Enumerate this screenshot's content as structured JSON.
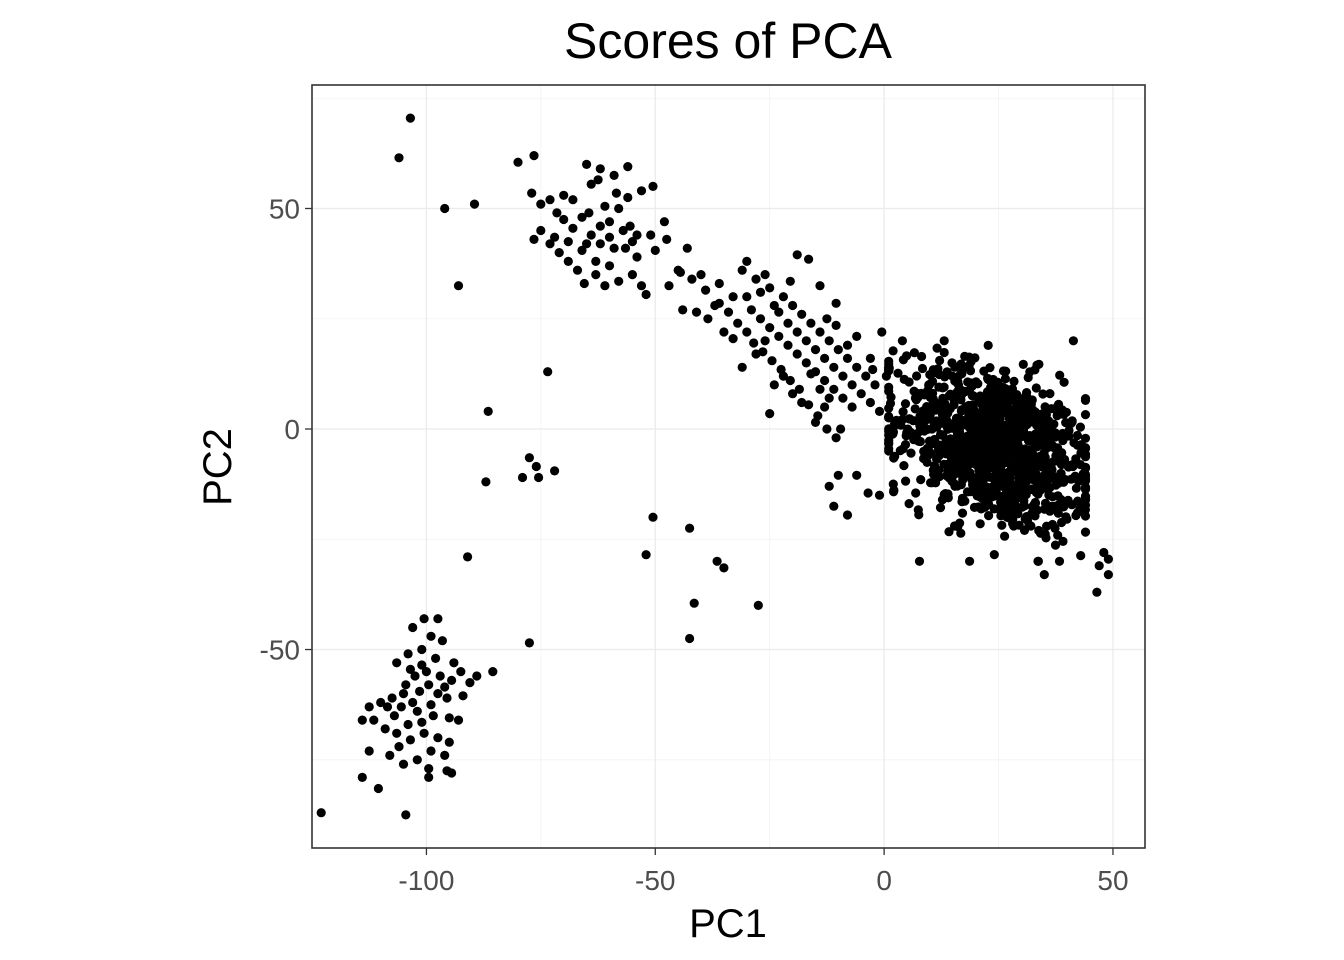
{
  "chart_data": {
    "type": "scatter",
    "title": "Scores of PCA",
    "xlabel": "PC1",
    "ylabel": "PC2",
    "xlim": [
      -125,
      57
    ],
    "ylim": [
      -95,
      78
    ],
    "x_ticks": [
      -100,
      -50,
      0,
      50
    ],
    "y_ticks": [
      -50,
      0,
      50
    ],
    "x_tick_labels": [
      "-100",
      "-50",
      "0",
      "50"
    ],
    "y_tick_labels": [
      "-50",
      "0",
      "50"
    ],
    "grid": true,
    "theme": "bw",
    "point_color": "#000000",
    "points": [
      [
        -103.5,
        70.5
      ],
      [
        -106,
        61.5
      ],
      [
        -96,
        50
      ],
      [
        -89.5,
        51
      ],
      [
        -93,
        32.5
      ],
      [
        -73.5,
        13
      ],
      [
        -86.5,
        4
      ],
      [
        -87,
        -12
      ],
      [
        -77.5,
        -6.5
      ],
      [
        -79,
        -11
      ],
      [
        -76,
        -8.5
      ],
      [
        -72,
        -9.5
      ],
      [
        -75.5,
        -11
      ],
      [
        -91,
        -29
      ],
      [
        -77.5,
        -48.5
      ],
      [
        -50.5,
        -20
      ],
      [
        -52,
        -28.5
      ],
      [
        -42.5,
        -22.5
      ],
      [
        -41.5,
        -39.5
      ],
      [
        -42.5,
        -47.5
      ],
      [
        -36.5,
        -30
      ],
      [
        -35,
        -31.5
      ],
      [
        -27.5,
        -40
      ],
      [
        -123,
        -87
      ],
      [
        -110.5,
        -81.5
      ],
      [
        -114,
        -79
      ],
      [
        -104.5,
        -87.5
      ],
      [
        -85.5,
        -55
      ],
      [
        -12,
        -13
      ],
      [
        -10,
        -10.5
      ],
      [
        -11,
        -17.5
      ],
      [
        -8,
        -19.5
      ],
      [
        -6,
        -10.5
      ],
      [
        -3.5,
        -14.5
      ],
      [
        -1,
        -15
      ],
      [
        2,
        -12.5
      ],
      [
        48,
        -28
      ],
      [
        49,
        -29.5
      ],
      [
        47,
        -31
      ],
      [
        49,
        -33
      ],
      [
        46.5,
        -37
      ],
      [
        35,
        -33
      ],
      [
        21,
        -21.5
      ],
      [
        -9.5,
        0
      ],
      [
        -15,
        1.5
      ],
      [
        -13,
        5
      ],
      [
        -25,
        3.5
      ],
      [
        -76.5,
        62
      ],
      [
        -80,
        60.5
      ],
      [
        -65,
        60
      ],
      [
        -62,
        59
      ],
      [
        -56,
        59.5
      ],
      [
        -59,
        57.5
      ],
      [
        -64,
        55.5
      ],
      [
        -62.5,
        56.5
      ],
      [
        -68,
        52
      ],
      [
        -70,
        53
      ],
      [
        -73,
        52
      ],
      [
        -75,
        51
      ],
      [
        -77,
        53.5
      ],
      [
        -58,
        50
      ],
      [
        -56,
        52.5
      ],
      [
        -53,
        54
      ],
      [
        -50.5,
        55
      ],
      [
        -55.5,
        46
      ],
      [
        -51,
        44
      ],
      [
        -48,
        47
      ],
      [
        -47.5,
        43
      ],
      [
        -50,
        40.5
      ],
      [
        -54,
        39
      ],
      [
        -60,
        37
      ],
      [
        -63,
        35
      ],
      [
        -65.5,
        33
      ],
      [
        -61,
        32.5
      ],
      [
        -58,
        33.5
      ],
      [
        -55,
        35
      ],
      [
        -53,
        32.5
      ],
      [
        -52,
        30.5
      ],
      [
        -47,
        32.5
      ],
      [
        -44,
        27
      ],
      [
        -69,
        38
      ],
      [
        -71,
        40
      ],
      [
        -73,
        42
      ],
      [
        -75,
        45
      ],
      [
        -76.5,
        43
      ],
      [
        -66,
        40.5
      ],
      [
        -64,
        44
      ],
      [
        -62,
        42
      ],
      [
        -60,
        47
      ],
      [
        -61,
        50.5
      ],
      [
        -57,
        45
      ],
      [
        -66,
        48
      ],
      [
        -68,
        45.5
      ],
      [
        -70,
        47.5
      ],
      [
        -72,
        43.5
      ],
      [
        -59,
        41
      ],
      [
        -56.5,
        41
      ],
      [
        -54,
        44
      ],
      [
        -63,
        38
      ],
      [
        -67,
        36
      ],
      [
        -64.5,
        49
      ],
      [
        -58.5,
        53.5
      ],
      [
        -71.5,
        49
      ],
      [
        -69,
        42.5
      ],
      [
        -62,
        46
      ],
      [
        -60,
        43.5
      ],
      [
        -65,
        42
      ],
      [
        -55,
        42.5
      ],
      [
        -45,
        36
      ],
      [
        -40,
        35
      ],
      [
        -36,
        33
      ],
      [
        -31,
        36
      ],
      [
        -28,
        34
      ],
      [
        -25,
        32
      ],
      [
        -22,
        30
      ],
      [
        -20,
        28
      ],
      [
        -18,
        26
      ],
      [
        -16,
        24
      ],
      [
        -14,
        22
      ],
      [
        -12,
        20
      ],
      [
        -10,
        18
      ],
      [
        -8,
        16
      ],
      [
        -6,
        14
      ],
      [
        -4,
        12
      ],
      [
        -2,
        10
      ],
      [
        -30,
        38
      ],
      [
        -26,
        35
      ],
      [
        -24,
        28
      ],
      [
        -21,
        24
      ],
      [
        -19,
        22
      ],
      [
        -17,
        20
      ],
      [
        -15,
        18
      ],
      [
        -13,
        16
      ],
      [
        -11,
        14
      ],
      [
        -9,
        12
      ],
      [
        -7,
        10
      ],
      [
        -5,
        8
      ],
      [
        -3,
        6
      ],
      [
        -1,
        4
      ],
      [
        -33,
        30
      ],
      [
        -29,
        27
      ],
      [
        -27,
        25
      ],
      [
        -25,
        23
      ],
      [
        -23,
        21
      ],
      [
        -21,
        19
      ],
      [
        -19,
        17
      ],
      [
        -17,
        15
      ],
      [
        -15,
        13
      ],
      [
        -13,
        11
      ],
      [
        -11,
        9
      ],
      [
        -9,
        7
      ],
      [
        -7,
        5
      ],
      [
        -19,
        39.5
      ],
      [
        -16.5,
        38.5
      ],
      [
        -14,
        32.5
      ],
      [
        -10.5,
        28.5
      ],
      [
        -20.5,
        33.5
      ],
      [
        -23,
        26.5
      ],
      [
        -26,
        20
      ],
      [
        -28,
        17
      ],
      [
        -31,
        14
      ],
      [
        -33,
        20.5
      ],
      [
        -35,
        22
      ],
      [
        -37,
        28
      ],
      [
        -39,
        31.5
      ],
      [
        -41,
        26.5
      ],
      [
        -43,
        41
      ],
      [
        -24,
        10
      ],
      [
        -22,
        12
      ],
      [
        -20,
        8
      ],
      [
        -18,
        6
      ],
      [
        -16,
        12.5
      ],
      [
        -14,
        9
      ],
      [
        -12,
        7
      ],
      [
        -0.5,
        22
      ],
      [
        4,
        20
      ],
      [
        -3,
        16
      ],
      [
        -6,
        21
      ],
      [
        -8,
        19
      ],
      [
        -10.5,
        23.5
      ],
      [
        -12.5,
        25
      ],
      [
        -2.5,
        13.5
      ],
      [
        0.5,
        12
      ],
      [
        -38.5,
        25
      ],
      [
        -36,
        28.5
      ],
      [
        -34,
        26.5
      ],
      [
        -32,
        24
      ],
      [
        -30,
        22
      ],
      [
        -28.5,
        19.5
      ],
      [
        -26.5,
        17.5
      ],
      [
        -24.5,
        15.5
      ],
      [
        -22.5,
        13.5
      ],
      [
        -20.5,
        11
      ],
      [
        -18.5,
        9
      ],
      [
        -16.5,
        5.5
      ],
      [
        -14.5,
        3
      ],
      [
        -12.5,
        0
      ],
      [
        -10.5,
        -2
      ],
      [
        -44.5,
        35.5
      ],
      [
        -42,
        34
      ],
      [
        -27,
        31
      ],
      [
        -30,
        30
      ],
      [
        -100.5,
        -43
      ],
      [
        -97.5,
        -43
      ],
      [
        -103,
        -45
      ],
      [
        -99,
        -47
      ],
      [
        -96.5,
        -48
      ],
      [
        -101,
        -50
      ],
      [
        -104,
        -51
      ],
      [
        -106.5,
        -53
      ],
      [
        -98,
        -52
      ],
      [
        -94,
        -53
      ],
      [
        -100,
        -55
      ],
      [
        -102.5,
        -56
      ],
      [
        -97,
        -56
      ],
      [
        -94.5,
        -57
      ],
      [
        -92.5,
        -55
      ],
      [
        -89,
        -56
      ],
      [
        -90.5,
        -57.5
      ],
      [
        -99.5,
        -58
      ],
      [
        -104.5,
        -58
      ],
      [
        -101.5,
        -59.5
      ],
      [
        -97.5,
        -60
      ],
      [
        -95.5,
        -61
      ],
      [
        -92,
        -60.5
      ],
      [
        -103,
        -62
      ],
      [
        -99,
        -62.5
      ],
      [
        -105.5,
        -63
      ],
      [
        -108.5,
        -63
      ],
      [
        -107,
        -65
      ],
      [
        -102,
        -64
      ],
      [
        -98.5,
        -65
      ],
      [
        -95,
        -65.5
      ],
      [
        -93,
        -66
      ],
      [
        -110,
        -62
      ],
      [
        -112.5,
        -63
      ],
      [
        -101,
        -66.5
      ],
      [
        -104,
        -67
      ],
      [
        -106.5,
        -69
      ],
      [
        -109,
        -68
      ],
      [
        -111.5,
        -66
      ],
      [
        -114,
        -66
      ],
      [
        -100.5,
        -69
      ],
      [
        -97.5,
        -70
      ],
      [
        -95,
        -71
      ],
      [
        -103.5,
        -70.5
      ],
      [
        -106,
        -72
      ],
      [
        -108,
        -74
      ],
      [
        -112.5,
        -73
      ],
      [
        -99,
        -73
      ],
      [
        -96,
        -74
      ],
      [
        -102,
        -75
      ],
      [
        -105,
        -76
      ],
      [
        -99.5,
        -77
      ],
      [
        -95.5,
        -77.5
      ],
      [
        -94.5,
        -78
      ],
      [
        -99.5,
        -79
      ],
      [
        -101,
        -53.5
      ],
      [
        -103.5,
        -54.5
      ],
      [
        -96,
        -58.5
      ],
      [
        -105,
        -60
      ],
      [
        -107.5,
        -61
      ]
    ],
    "dense_cluster": {
      "center": [
        24,
        -4
      ],
      "spread": [
        10.5,
        9.5
      ],
      "correlation": -0.35,
      "count": 1100
    }
  }
}
